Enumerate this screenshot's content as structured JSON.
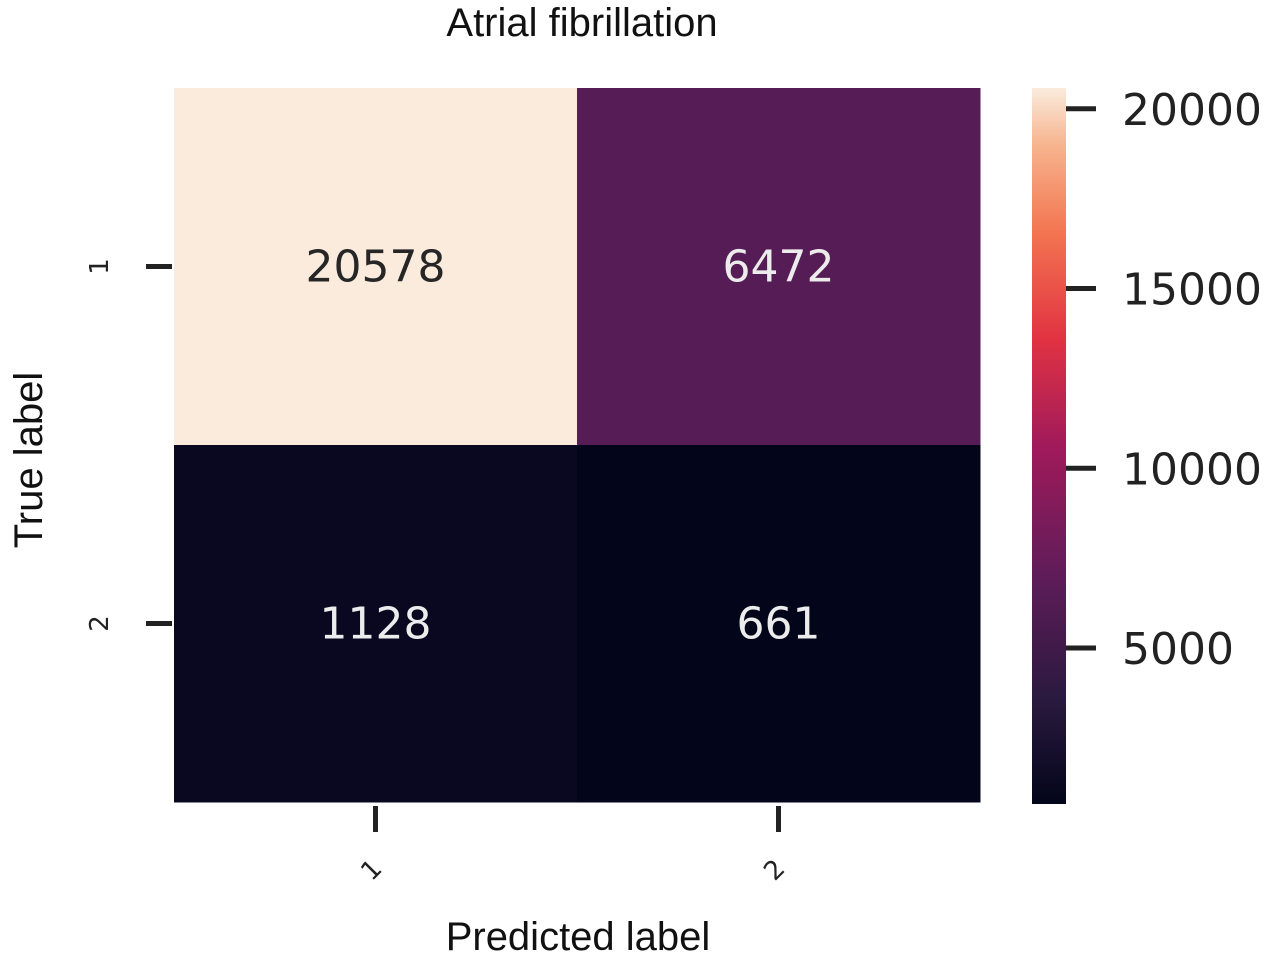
{
  "chart_data": {
    "type": "heatmap",
    "title": "Atrial fibrillation",
    "xlabel": "Predicted label",
    "ylabel": "True label",
    "x_categories": [
      "1",
      "2"
    ],
    "y_categories": [
      "1",
      "2"
    ],
    "values": [
      [
        20578,
        6472
      ],
      [
        1128,
        661
      ]
    ],
    "colormap": "rocket",
    "colorbar": {
      "min": 661,
      "max": 20578,
      "ticks": [
        5000,
        10000,
        15000,
        20000
      ],
      "tick_labels": [
        "5000",
        "10000",
        "15000",
        "20000"
      ]
    },
    "grid": false,
    "legend": "colorbar-right"
  }
}
